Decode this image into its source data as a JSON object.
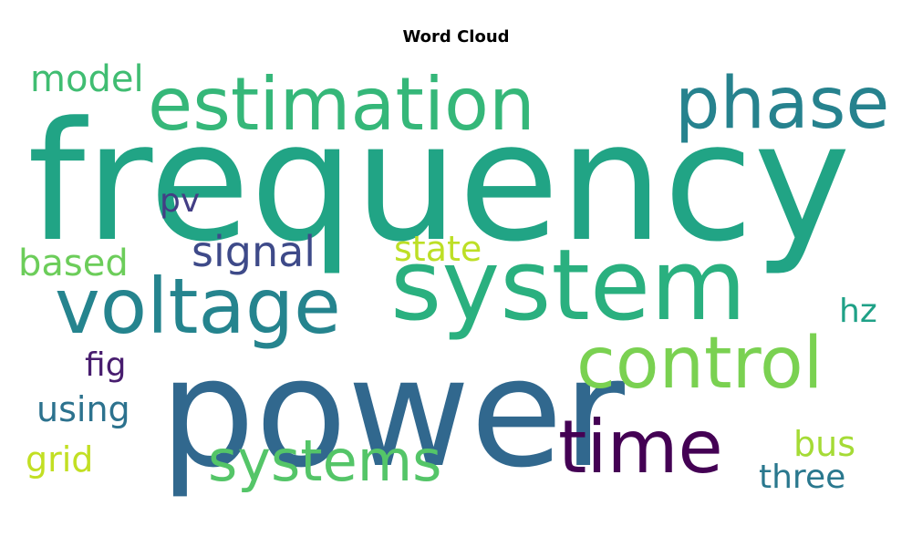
{
  "chart_data": {
    "type": "word_cloud",
    "title": "Word Cloud",
    "words": [
      {
        "text": "frequency",
        "color": "#21a485"
      },
      {
        "text": "power",
        "color": "#31688e"
      },
      {
        "text": "system",
        "color": "#2ab07f"
      },
      {
        "text": "estimation",
        "color": "#35b779"
      },
      {
        "text": "voltage",
        "color": "#25848e"
      },
      {
        "text": "phase",
        "color": "#26828e"
      },
      {
        "text": "time",
        "color": "#440154"
      },
      {
        "text": "control",
        "color": "#7ad151"
      },
      {
        "text": "systems",
        "color": "#54c568"
      },
      {
        "text": "signal",
        "color": "#3e4a89"
      },
      {
        "text": "model",
        "color": "#40bd72"
      },
      {
        "text": "based",
        "color": "#6ccd5a"
      },
      {
        "text": "state",
        "color": "#bddf26"
      },
      {
        "text": "pv",
        "color": "#433e85"
      },
      {
        "text": "fig",
        "color": "#481d6f"
      },
      {
        "text": "using",
        "color": "#2c728e"
      },
      {
        "text": "grid",
        "color": "#c2df23"
      },
      {
        "text": "bus",
        "color": "#a5db36"
      },
      {
        "text": "hz",
        "color": "#1fa187"
      },
      {
        "text": "three",
        "color": "#2a788e"
      }
    ]
  }
}
